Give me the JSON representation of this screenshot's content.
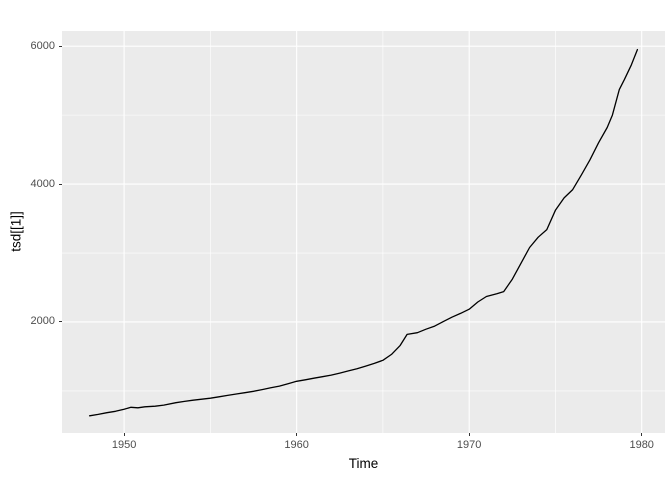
{
  "chart_data": {
    "type": "line",
    "title": "",
    "xlabel": "Time",
    "ylabel": "tsd[[1]]",
    "legend_position": "none",
    "grid": true,
    "panel_bg": "#EBEBEB",
    "grid_color": "#FFFFFF",
    "line_color": "#000000",
    "tick_color": "#333333",
    "tick_label_color": "#4D4D4D",
    "xlim": [
      1946.4,
      1981.35
    ],
    "ylim": [
      390,
      6220
    ],
    "x_ticks": [
      1950,
      1960,
      1970,
      1980
    ],
    "x_tick_labels": [
      "1950",
      "1960",
      "1970",
      "1980"
    ],
    "x_minor_ticks": [
      1955,
      1965,
      1975
    ],
    "y_ticks": [
      2000,
      4000,
      6000
    ],
    "y_tick_labels": [
      "2000",
      "4000",
      "6000"
    ],
    "y_minor_ticks": [
      1000,
      3000,
      5000
    ],
    "series": [
      {
        "name": "tsd[[1]]",
        "x": [
          1948.0,
          1948.5,
          1949.0,
          1949.5,
          1950.0,
          1950.4,
          1950.8,
          1951.2,
          1951.8,
          1952.3,
          1953.0,
          1953.5,
          1954.0,
          1954.5,
          1955.0,
          1955.5,
          1956.0,
          1956.5,
          1957.0,
          1957.5,
          1958.0,
          1958.5,
          1959.0,
          1959.5,
          1960.0,
          1960.5,
          1961.0,
          1961.5,
          1962.0,
          1962.5,
          1963.0,
          1963.5,
          1964.0,
          1964.5,
          1965.0,
          1965.5,
          1966.0,
          1966.4,
          1967.0,
          1967.5,
          1968.0,
          1968.5,
          1969.0,
          1969.5,
          1970.0,
          1970.5,
          1971.0,
          1971.6,
          1972.0,
          1972.5,
          1973.0,
          1973.5,
          1974.0,
          1974.5,
          1975.0,
          1975.5,
          1976.0,
          1976.5,
          1977.0,
          1977.5,
          1978.0,
          1978.3,
          1978.7,
          1979.0,
          1979.4,
          1979.75
        ],
        "y": [
          640,
          660,
          685,
          705,
          735,
          762,
          756,
          770,
          778,
          795,
          830,
          848,
          865,
          880,
          895,
          915,
          935,
          955,
          975,
          995,
          1020,
          1045,
          1070,
          1105,
          1140,
          1162,
          1185,
          1207,
          1230,
          1258,
          1290,
          1322,
          1360,
          1400,
          1445,
          1530,
          1660,
          1820,
          1845,
          1895,
          1940,
          2005,
          2070,
          2125,
          2185,
          2290,
          2370,
          2410,
          2440,
          2620,
          2850,
          3080,
          3230,
          3340,
          3620,
          3800,
          3920,
          4130,
          4350,
          4600,
          4820,
          5000,
          5370,
          5520,
          5730,
          5950
        ]
      }
    ]
  }
}
